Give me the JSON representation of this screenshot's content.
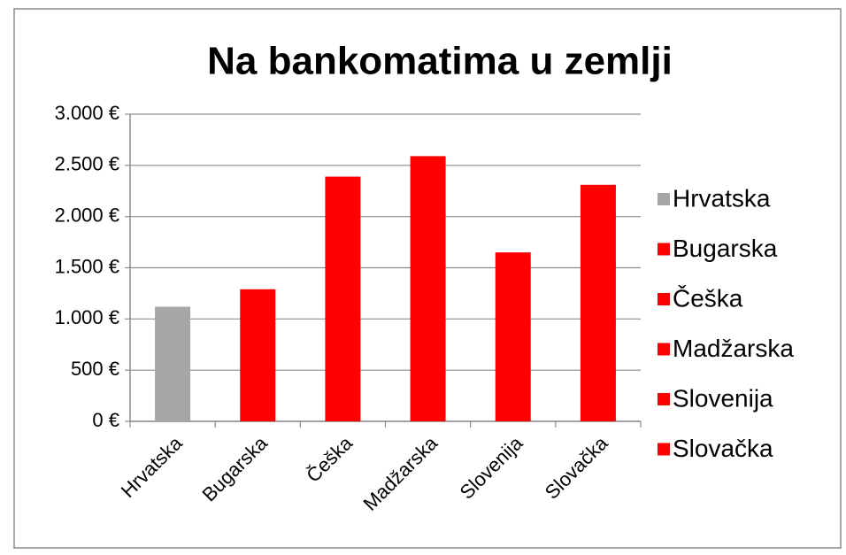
{
  "chart_data": {
    "type": "bar",
    "title": "Na bankomatima u zemlji",
    "categories": [
      "Hrvatska",
      "Bugarska",
      "Češka",
      "Madžarska",
      "Slovenija",
      "Slovačka"
    ],
    "values": [
      1120,
      1290,
      2390,
      2590,
      1650,
      2310
    ],
    "colors": [
      "#a6a6a6",
      "#ff0000",
      "#ff0000",
      "#ff0000",
      "#ff0000",
      "#ff0000"
    ],
    "ylim": [
      0,
      3000
    ],
    "yticks": [
      {
        "value": 0,
        "label": "0 €"
      },
      {
        "value": 500,
        "label": "500 €"
      },
      {
        "value": 1000,
        "label": "1.000 €"
      },
      {
        "value": 1500,
        "label": "1.500 €"
      },
      {
        "value": 2000,
        "label": "2.000 €"
      },
      {
        "value": 2500,
        "label": "2.500 €"
      },
      {
        "value": 3000,
        "label": "3.000 €"
      }
    ],
    "grid": true,
    "legend": "right"
  }
}
